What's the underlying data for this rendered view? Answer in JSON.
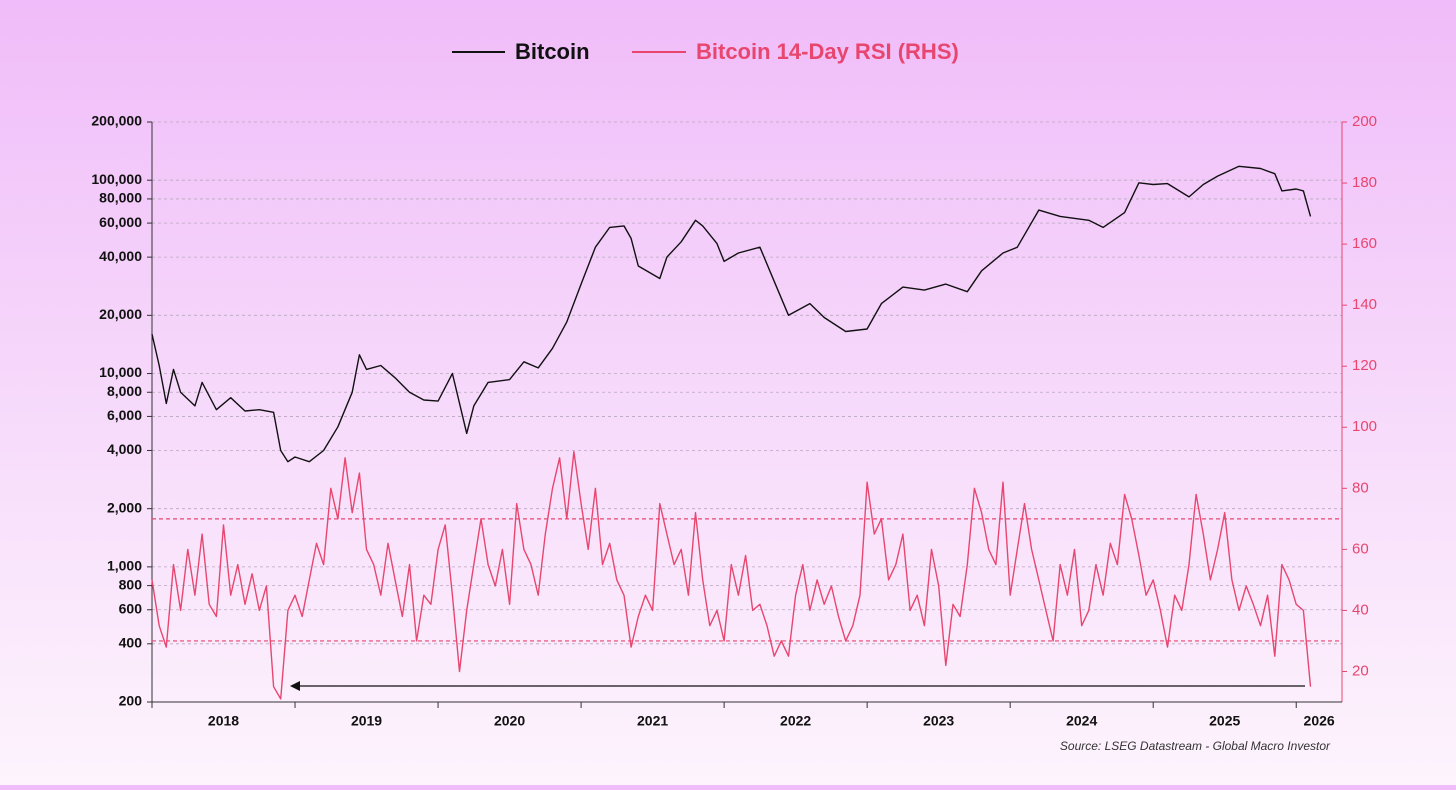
{
  "chart_data": {
    "type": "line",
    "source": "Source: LSEG Datastream - Global Macro Investor",
    "log_y": true,
    "grid": true,
    "legend": "top",
    "xlim": [
      2018,
      2026.32
    ],
    "xticks": [
      2018,
      2019,
      2020,
      2021,
      2022,
      2023,
      2024,
      2025,
      2026
    ],
    "ylim": [
      200,
      200000
    ],
    "yticks": [
      200,
      400,
      {
        "value": 600,
        "label": "600"
      },
      800,
      {
        "value": 1000,
        "label": "1,000"
      },
      {
        "value": 2000,
        "label": "2,000"
      },
      {
        "value": 4000,
        "label": "4,000"
      },
      {
        "value": 6000,
        "label": "6,000"
      },
      {
        "value": 8000,
        "label": "8,000"
      },
      {
        "value": 10000,
        "label": "10,000"
      },
      {
        "value": 20000,
        "label": "20,000"
      },
      {
        "value": 40000,
        "label": "40,000"
      },
      {
        "value": 60000,
        "label": "60,000"
      },
      {
        "value": 80000,
        "label": "80,000"
      },
      {
        "value": 100000,
        "label": "100,000"
      },
      {
        "value": 200000,
        "label": "200,000"
      }
    ],
    "y2lim": [
      10,
      200
    ],
    "y2ticks": [
      20,
      40,
      60,
      80,
      100,
      120,
      140,
      160,
      180,
      200
    ],
    "y2_reference_lines": [
      70,
      30
    ],
    "series": [
      {
        "name": "Bitcoin",
        "color": "#111111",
        "axis": "y",
        "x": [
          2018.0,
          2018.05,
          2018.1,
          2018.15,
          2018.2,
          2018.3,
          2018.35,
          2018.45,
          2018.55,
          2018.65,
          2018.75,
          2018.85,
          2018.9,
          2018.95,
          2019.0,
          2019.1,
          2019.2,
          2019.3,
          2019.4,
          2019.45,
          2019.5,
          2019.6,
          2019.7,
          2019.8,
          2019.9,
          2020.0,
          2020.1,
          2020.2,
          2020.25,
          2020.35,
          2020.5,
          2020.6,
          2020.7,
          2020.8,
          2020.9,
          2021.0,
          2021.1,
          2021.2,
          2021.3,
          2021.35,
          2021.4,
          2021.55,
          2021.6,
          2021.7,
          2021.8,
          2021.85,
          2021.95,
          2022.0,
          2022.1,
          2022.25,
          2022.35,
          2022.45,
          2022.6,
          2022.7,
          2022.85,
          2023.0,
          2023.1,
          2023.25,
          2023.4,
          2023.55,
          2023.7,
          2023.8,
          2023.95,
          2024.05,
          2024.2,
          2024.35,
          2024.55,
          2024.65,
          2024.8,
          2024.9,
          2025.0,
          2025.1,
          2025.25,
          2025.35,
          2025.45,
          2025.6,
          2025.75,
          2025.85,
          2025.9,
          2026.0,
          2026.05,
          2026.1
        ],
        "values": [
          16000,
          11000,
          7000,
          10500,
          8000,
          6800,
          9000,
          6500,
          7500,
          6400,
          6500,
          6300,
          4000,
          3500,
          3700,
          3500,
          4000,
          5300,
          8000,
          12500,
          10500,
          11000,
          9500,
          8000,
          7300,
          7200,
          10000,
          4900,
          6800,
          9000,
          9300,
          11500,
          10700,
          13500,
          18500,
          29000,
          45000,
          57000,
          58000,
          50000,
          36000,
          31000,
          40000,
          48000,
          62000,
          58000,
          47000,
          38000,
          42000,
          45000,
          30000,
          20000,
          23000,
          19500,
          16500,
          17000,
          23000,
          28000,
          27000,
          29000,
          26500,
          34000,
          42000,
          45000,
          70000,
          65000,
          62000,
          57000,
          68000,
          97000,
          95000,
          96000,
          82000,
          95000,
          105000,
          118000,
          115000,
          108000,
          88000,
          90000,
          88000,
          65000
        ]
      },
      {
        "name": "Bitcoin 14-Day RSI (RHS)",
        "color": "#e8466f",
        "axis": "y2",
        "x": [
          2018.0,
          2018.05,
          2018.1,
          2018.15,
          2018.2,
          2018.25,
          2018.3,
          2018.35,
          2018.4,
          2018.45,
          2018.5,
          2018.55,
          2018.6,
          2018.65,
          2018.7,
          2018.75,
          2018.8,
          2018.85,
          2018.9,
          2018.95,
          2019.0,
          2019.05,
          2019.1,
          2019.15,
          2019.2,
          2019.25,
          2019.3,
          2019.35,
          2019.4,
          2019.45,
          2019.5,
          2019.55,
          2019.6,
          2019.65,
          2019.7,
          2019.75,
          2019.8,
          2019.85,
          2019.9,
          2019.95,
          2020.0,
          2020.05,
          2020.1,
          2020.15,
          2020.2,
          2020.25,
          2020.3,
          2020.35,
          2020.4,
          2020.45,
          2020.5,
          2020.55,
          2020.6,
          2020.65,
          2020.7,
          2020.75,
          2020.8,
          2020.85,
          2020.9,
          2020.95,
          2021.0,
          2021.05,
          2021.1,
          2021.15,
          2021.2,
          2021.25,
          2021.3,
          2021.35,
          2021.4,
          2021.45,
          2021.5,
          2021.55,
          2021.6,
          2021.65,
          2021.7,
          2021.75,
          2021.8,
          2021.85,
          2021.9,
          2021.95,
          2022.0,
          2022.05,
          2022.1,
          2022.15,
          2022.2,
          2022.25,
          2022.3,
          2022.35,
          2022.4,
          2022.45,
          2022.5,
          2022.55,
          2022.6,
          2022.65,
          2022.7,
          2022.75,
          2022.8,
          2022.85,
          2022.9,
          2022.95,
          2023.0,
          2023.05,
          2023.1,
          2023.15,
          2023.2,
          2023.25,
          2023.3,
          2023.35,
          2023.4,
          2023.45,
          2023.5,
          2023.55,
          2023.6,
          2023.65,
          2023.7,
          2023.75,
          2023.8,
          2023.85,
          2023.9,
          2023.95,
          2024.0,
          2024.05,
          2024.1,
          2024.15,
          2024.2,
          2024.25,
          2024.3,
          2024.35,
          2024.4,
          2024.45,
          2024.5,
          2024.55,
          2024.6,
          2024.65,
          2024.7,
          2024.75,
          2024.8,
          2024.85,
          2024.9,
          2024.95,
          2025.0,
          2025.05,
          2025.1,
          2025.15,
          2025.2,
          2025.25,
          2025.3,
          2025.35,
          2025.4,
          2025.45,
          2025.5,
          2025.55,
          2025.6,
          2025.65,
          2025.7,
          2025.75,
          2025.8,
          2025.85,
          2025.9,
          2025.95,
          2026.0,
          2026.05,
          2026.1
        ],
        "values": [
          50,
          35,
          28,
          55,
          40,
          60,
          45,
          65,
          42,
          38,
          68,
          45,
          55,
          42,
          52,
          40,
          48,
          15,
          11,
          40,
          45,
          38,
          50,
          62,
          55,
          80,
          70,
          90,
          72,
          85,
          60,
          55,
          45,
          62,
          50,
          38,
          55,
          30,
          45,
          42,
          60,
          68,
          45,
          20,
          40,
          55,
          70,
          55,
          48,
          60,
          42,
          75,
          60,
          55,
          45,
          65,
          80,
          90,
          70,
          92,
          75,
          60,
          80,
          55,
          62,
          50,
          45,
          28,
          38,
          45,
          40,
          75,
          65,
          55,
          60,
          45,
          72,
          50,
          35,
          40,
          30,
          55,
          45,
          58,
          40,
          42,
          35,
          25,
          30,
          25,
          45,
          55,
          40,
          50,
          42,
          48,
          38,
          30,
          35,
          45,
          82,
          65,
          70,
          50,
          55,
          65,
          40,
          45,
          35,
          60,
          48,
          22,
          42,
          38,
          55,
          80,
          72,
          60,
          55,
          82,
          45,
          60,
          75,
          60,
          50,
          40,
          30,
          55,
          45,
          60,
          35,
          40,
          55,
          45,
          62,
          55,
          78,
          70,
          58,
          45,
          50,
          40,
          28,
          45,
          40,
          55,
          78,
          65,
          50,
          60,
          72,
          50,
          40,
          48,
          42,
          35,
          45,
          25,
          55,
          50,
          42,
          40,
          15
        ]
      }
    ]
  }
}
